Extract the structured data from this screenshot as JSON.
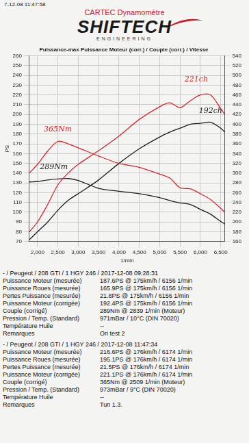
{
  "header": {
    "timestamp": "7-12-08 11:47:58",
    "brand": "CARTEC Dynamomètre",
    "logo": "SHIFTECH",
    "logo_sub": "ENGINEERING"
  },
  "chart_data": {
    "type": "line",
    "title": "Puissance-max Puissance Moteur (corr.) / Couple (corr.) / Vitesse",
    "x_label": "1/min",
    "y_label": "PS",
    "x": [
      1800,
      2000,
      2250,
      2500,
      2750,
      3000,
      3500,
      4000,
      4500,
      5000,
      5250,
      5500,
      5750,
      6000,
      6250,
      6500,
      6600
    ],
    "series": [
      {
        "color": "#d8262c",
        "values": [
          80,
          90,
          108,
          128,
          140,
          149,
          163,
          178,
          195,
          208,
          212,
          207,
          214,
          220,
          220,
          206,
          200
        ]
      },
      {
        "color": "#d8262c",
        "axis": "y2",
        "values": [
          300,
          318,
          345,
          365,
          360,
          352,
          335,
          320,
          312,
          298,
          290,
          270,
          268,
          258,
          246,
          228,
          220
        ]
      },
      {
        "color": "#1c1c1c",
        "values": [
          72,
          80,
          90,
          102,
          112,
          119,
          133,
          150,
          165,
          177,
          182,
          186,
          190,
          191,
          192,
          186,
          182
        ]
      },
      {
        "color": "#1c1c1c",
        "axis": "y2",
        "values": [
          282,
          283,
          286,
          288,
          289,
          285,
          269,
          263,
          258,
          250,
          244,
          239,
          236,
          226,
          216,
          201,
          196
        ]
      }
    ],
    "xlim": [
      1800,
      6600
    ],
    "xticks": [
      {
        "value": 2000,
        "label": "2,000"
      },
      {
        "value": 2500,
        "label": "2,500"
      },
      {
        "value": 3000,
        "label": "3,000"
      },
      {
        "value": 3500,
        "label": "3,500"
      },
      {
        "value": 4000,
        "label": "4,000"
      },
      {
        "value": 4500,
        "label": "4,500"
      },
      {
        "value": 5000,
        "label": "5,000"
      },
      {
        "value": 5500,
        "label": "5,500"
      },
      {
        "value": 6000,
        "label": "6,000"
      },
      {
        "value": 6500,
        "label": "6,500"
      }
    ],
    "ylim": [
      70,
      260
    ],
    "yticks": [
      70,
      80,
      90,
      100,
      110,
      120,
      130,
      140,
      150,
      160,
      170,
      180,
      190,
      200,
      210,
      220,
      230,
      240,
      250,
      260
    ],
    "y2lim": [
      160,
      540
    ],
    "y2ticks": [
      160,
      180,
      200,
      220,
      240,
      260,
      280,
      300,
      320,
      340,
      360,
      380,
      400,
      420,
      440,
      460,
      480,
      500,
      520,
      540
    ],
    "grid": true,
    "annotations": [
      {
        "text": "365Nm",
        "x": 2500,
        "y": 382,
        "axis": "y2",
        "color": "#d8262c"
      },
      {
        "text": "289Nm",
        "x": 2400,
        "y": 305,
        "axis": "y2",
        "color": "#1c1c1c"
      },
      {
        "text": "221ch",
        "x": 5900,
        "y": 232,
        "color": "#d8262c"
      },
      {
        "text": "192ch",
        "x": 6250,
        "y": 200,
        "color": "#1c1c1c"
      }
    ]
  },
  "runs": [
    {
      "title": "- / Peugeot / 208 GTI / 1 HGY 246 / 2017-12-08 09:28:31",
      "rows": [
        [
          "Puissance Moteur (mesurée)",
          "187.6PS @ 175km/h / 6156 1/min"
        ],
        [
          "Puissance Roues (mesurée)",
          "165.9PS @ 175km/h / 6156 1/min"
        ],
        [
          "Pertes Puissance (mesurée)",
          "21.8PS @ 175km/h / 6156 1/min"
        ],
        [
          "Puissance Moteur (corrigée)",
          "192.4PS @ 175km/h / 6156 1/min"
        ],
        [
          "Couple (corrigé)",
          "289Nm @ 2839 1/min (Moteur)"
        ],
        [
          "Pression / Temp. (Standard)",
          "971mBar / 10°C (DIN 70020)"
        ],
        [
          "Température Huile",
          "--"
        ],
        [
          "Remarques",
          "Ori test 2"
        ]
      ]
    },
    {
      "title": "- / Peugeot / 208 GTI / 1 HGY 246 / 2017-12-08 11:47:34",
      "rows": [
        [
          "Puissance Moteur (mesurée)",
          "216.6PS @ 176km/h / 6174 1/min"
        ],
        [
          "Puissance Roues (mesurée)",
          "195.1PS @ 176km/h / 6174 1/min"
        ],
        [
          "Pertes Puissance (mesurée)",
          "21.5PS @ 176km/h / 6174 1/min"
        ],
        [
          "Puissance Moteur (corrigée)",
          "221.1PS @ 176km/h / 6174 1/min"
        ],
        [
          "Couple (corrigé)",
          "365Nm @ 2509 1/min (Moteur)"
        ],
        [
          "Pression / Temp. (Standard)",
          "973mBar / 9°C (DIN 70020)"
        ],
        [
          "Température Huile",
          "--"
        ],
        [
          "Remarques",
          "Tun 1.3."
        ]
      ]
    }
  ]
}
